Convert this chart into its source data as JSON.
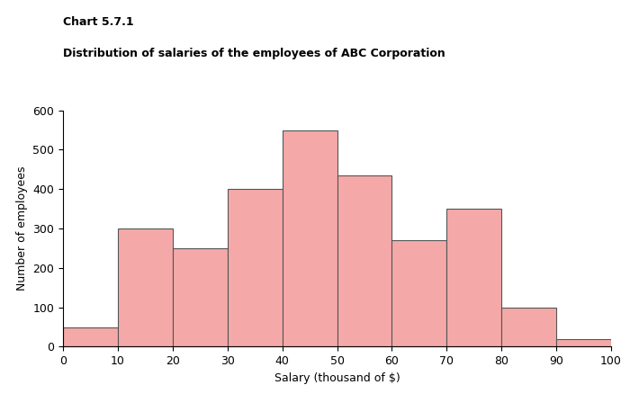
{
  "title_line1": "Chart 5.7.1",
  "title_line2": "Distribution of salaries of the employees of ABC Corporation",
  "xlabel": "Salary (thousand of $)",
  "ylabel": "Number of employees",
  "bar_edges": [
    0,
    10,
    20,
    30,
    40,
    50,
    60,
    70,
    80,
    90,
    100
  ],
  "bar_heights": [
    50,
    300,
    250,
    400,
    550,
    435,
    270,
    350,
    100,
    20
  ],
  "bar_color": "#f4a9a8",
  "bar_edgecolor": "#555555",
  "bar_linewidth": 0.8,
  "xlim": [
    0,
    100
  ],
  "ylim": [
    0,
    600
  ],
  "xticks": [
    0,
    10,
    20,
    30,
    40,
    50,
    60,
    70,
    80,
    90,
    100
  ],
  "yticks": [
    0,
    100,
    200,
    300,
    400,
    500,
    600
  ],
  "title_fontsize": 9,
  "title_fontweight": "bold",
  "axis_label_fontsize": 9,
  "tick_fontsize": 9,
  "background_color": "#ffffff"
}
